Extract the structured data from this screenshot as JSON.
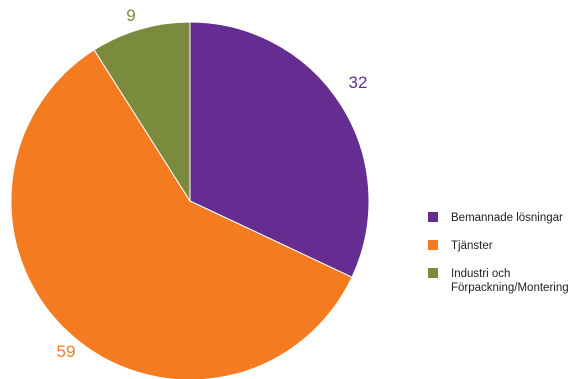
{
  "chart_data": {
    "type": "pie",
    "title": "",
    "slices": [
      {
        "label": "Bemannade lösningar",
        "value": 32,
        "color": "#652D91"
      },
      {
        "label": "Tjänster",
        "value": 59,
        "color": "#F47B20"
      },
      {
        "label": "Industri och Förpackning/Montering",
        "value": 9,
        "color": "#7B8B3E"
      }
    ],
    "data_labels": [
      "32",
      "59",
      "9"
    ],
    "legend": {
      "placement": "right",
      "entries": [
        {
          "lines": [
            "Bemannade lösningar"
          ]
        },
        {
          "lines": [
            "Tjänster"
          ]
        },
        {
          "lines": [
            "Industri och",
            "Förpackning/Montering"
          ]
        }
      ]
    }
  }
}
